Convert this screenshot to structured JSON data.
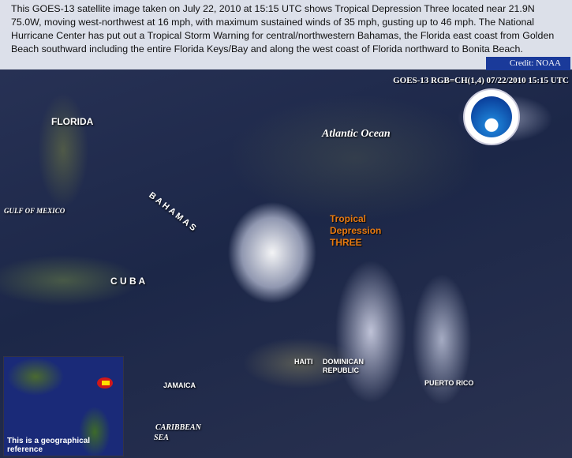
{
  "caption": {
    "text": "This GOES-13 satellite image taken on July 22, 2010 at 15:15 UTC shows Tropical Depression Three located near 21.9N 75.0W, moving west-northwest at 16 mph, with maximum sustained winds of 35 mph, gusting up to 46 mph. The National Hurricane Center has put out a Tropical Storm Warning for central/northwestern Bahamas, the Florida east coast from Golden Beach southward including the entire Florida Keys/Bay and along the west coast of Florida northward to Bonita Beach.",
    "credit": "Credit: NOAA"
  },
  "image": {
    "stamp": "GOES-13 RGB=CH(1,4)  07/22/2010 15:15 UTC",
    "logo": "NOAA",
    "labels": {
      "florida": "FLORIDA",
      "atlantic": "Atlantic   Ocean",
      "bahamas": "B A H A M A S",
      "gulf": "GULF OF MEXICO",
      "cuba": "C U B A",
      "haiti": "HAITI",
      "dominican": "DOMINICAN",
      "republic": "REPUBLIC",
      "jamaica": "JAMAICA",
      "puerto_rico": "PUERTO RICO",
      "caribbean": "CARIBBEAN",
      "sea": "SEA"
    },
    "storm": {
      "line1": "Tropical",
      "line2": "Depression",
      "line3": "THREE",
      "color": "#e87a10"
    },
    "inset": {
      "text": "This is a geographical reference"
    }
  }
}
